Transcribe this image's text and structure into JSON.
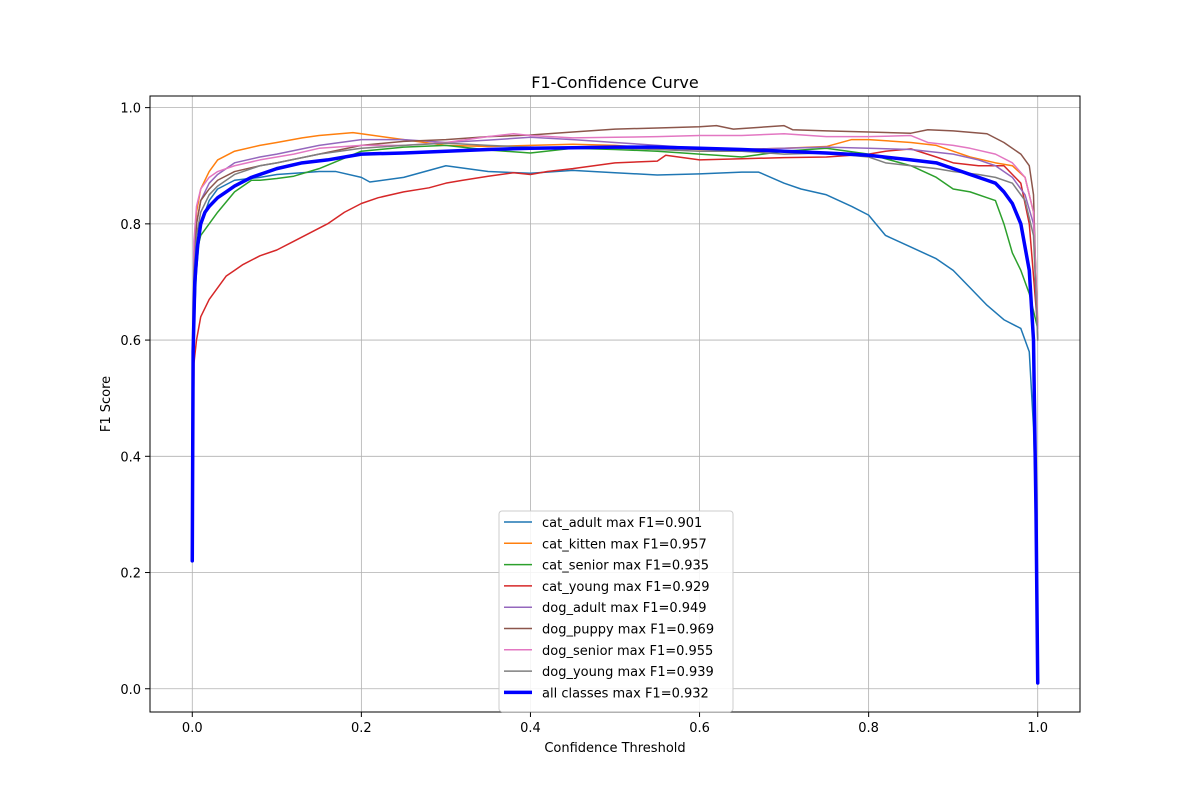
{
  "chart_data": {
    "type": "line",
    "title": "F1-Confidence Curve",
    "xlabel": "Confidence Threshold",
    "ylabel": "F1 Score",
    "xlim": [
      -0.05,
      1.05
    ],
    "ylim": [
      -0.04,
      1.02
    ],
    "xticks": [
      "0.0",
      "0.2",
      "0.4",
      "0.6",
      "0.8",
      "1.0"
    ],
    "yticks": [
      "0.0",
      "0.2",
      "0.4",
      "0.6",
      "0.8",
      "1.0"
    ],
    "grid": true,
    "legend_position": "lower-center",
    "series": [
      {
        "name": "cat_adult max F1=0.901",
        "color": "#1f77b4",
        "linewidth": 1.5,
        "x": [
          0.0,
          0.002,
          0.005,
          0.01,
          0.02,
          0.03,
          0.05,
          0.08,
          0.1,
          0.13,
          0.15,
          0.17,
          0.2,
          0.21,
          0.25,
          0.3,
          0.35,
          0.4,
          0.45,
          0.5,
          0.55,
          0.6,
          0.65,
          0.67,
          0.7,
          0.72,
          0.75,
          0.78,
          0.8,
          0.82,
          0.85,
          0.88,
          0.9,
          0.92,
          0.94,
          0.96,
          0.98,
          0.99,
          0.995,
          0.998,
          1.0
        ],
        "y": [
          0.22,
          0.62,
          0.72,
          0.8,
          0.84,
          0.86,
          0.875,
          0.88,
          0.885,
          0.888,
          0.89,
          0.89,
          0.88,
          0.872,
          0.88,
          0.9,
          0.89,
          0.887,
          0.892,
          0.888,
          0.884,
          0.886,
          0.889,
          0.889,
          0.87,
          0.86,
          0.85,
          0.83,
          0.815,
          0.78,
          0.76,
          0.74,
          0.72,
          0.69,
          0.66,
          0.635,
          0.62,
          0.58,
          0.45,
          0.3,
          0.01
        ]
      },
      {
        "name": "cat_kitten max F1=0.957",
        "color": "#ff7f0e",
        "linewidth": 1.5,
        "x": [
          0.0,
          0.002,
          0.005,
          0.01,
          0.02,
          0.03,
          0.05,
          0.08,
          0.1,
          0.13,
          0.15,
          0.19,
          0.2,
          0.25,
          0.3,
          0.35,
          0.4,
          0.45,
          0.5,
          0.55,
          0.6,
          0.65,
          0.7,
          0.75,
          0.78,
          0.8,
          0.85,
          0.88,
          0.9,
          0.92,
          0.95,
          0.97,
          0.985,
          0.995,
          1.0
        ],
        "y": [
          0.22,
          0.75,
          0.82,
          0.86,
          0.89,
          0.91,
          0.925,
          0.935,
          0.94,
          0.948,
          0.952,
          0.957,
          0.955,
          0.945,
          0.935,
          0.933,
          0.935,
          0.937,
          0.935,
          0.93,
          0.928,
          0.928,
          0.93,
          0.933,
          0.945,
          0.945,
          0.94,
          0.935,
          0.925,
          0.915,
          0.905,
          0.9,
          0.88,
          0.82,
          0.63
        ]
      },
      {
        "name": "cat_senior max F1=0.935",
        "color": "#2ca02c",
        "linewidth": 1.5,
        "x": [
          0.0,
          0.002,
          0.005,
          0.01,
          0.02,
          0.03,
          0.05,
          0.07,
          0.08,
          0.1,
          0.12,
          0.15,
          0.2,
          0.25,
          0.3,
          0.35,
          0.4,
          0.45,
          0.5,
          0.55,
          0.6,
          0.62,
          0.65,
          0.7,
          0.75,
          0.8,
          0.85,
          0.88,
          0.9,
          0.92,
          0.94,
          0.95,
          0.96,
          0.97,
          0.98,
          0.99,
          1.0
        ],
        "y": [
          0.22,
          0.7,
          0.75,
          0.78,
          0.8,
          0.82,
          0.855,
          0.875,
          0.875,
          0.878,
          0.882,
          0.895,
          0.925,
          0.932,
          0.935,
          0.927,
          0.922,
          0.93,
          0.928,
          0.925,
          0.92,
          0.918,
          0.915,
          0.925,
          0.93,
          0.92,
          0.9,
          0.88,
          0.86,
          0.855,
          0.845,
          0.84,
          0.8,
          0.75,
          0.72,
          0.68,
          0.62
        ]
      },
      {
        "name": "cat_young max F1=0.929",
        "color": "#d62728",
        "linewidth": 1.5,
        "x": [
          0.0,
          0.002,
          0.005,
          0.01,
          0.02,
          0.03,
          0.04,
          0.05,
          0.06,
          0.08,
          0.1,
          0.12,
          0.14,
          0.16,
          0.18,
          0.2,
          0.22,
          0.25,
          0.28,
          0.3,
          0.32,
          0.35,
          0.38,
          0.4,
          0.42,
          0.45,
          0.5,
          0.55,
          0.56,
          0.6,
          0.65,
          0.7,
          0.75,
          0.8,
          0.82,
          0.85,
          0.88,
          0.9,
          0.93,
          0.96,
          0.98,
          0.99,
          1.0
        ],
        "y": [
          0.22,
          0.56,
          0.6,
          0.64,
          0.67,
          0.69,
          0.71,
          0.72,
          0.73,
          0.745,
          0.755,
          0.77,
          0.785,
          0.8,
          0.82,
          0.835,
          0.845,
          0.855,
          0.862,
          0.87,
          0.875,
          0.882,
          0.888,
          0.885,
          0.89,
          0.895,
          0.905,
          0.908,
          0.918,
          0.91,
          0.912,
          0.914,
          0.915,
          0.92,
          0.925,
          0.929,
          0.915,
          0.905,
          0.9,
          0.9,
          0.87,
          0.8,
          0.62
        ]
      },
      {
        "name": "dog_adult max F1=0.949",
        "color": "#9467bd",
        "linewidth": 1.5,
        "x": [
          0.0,
          0.002,
          0.005,
          0.01,
          0.02,
          0.03,
          0.05,
          0.08,
          0.1,
          0.15,
          0.2,
          0.25,
          0.3,
          0.35,
          0.4,
          0.45,
          0.5,
          0.55,
          0.6,
          0.65,
          0.7,
          0.75,
          0.8,
          0.85,
          0.9,
          0.93,
          0.95,
          0.97,
          0.985,
          0.995,
          1.0
        ],
        "y": [
          0.22,
          0.75,
          0.8,
          0.84,
          0.87,
          0.885,
          0.905,
          0.915,
          0.92,
          0.935,
          0.945,
          0.945,
          0.94,
          0.944,
          0.949,
          0.945,
          0.94,
          0.935,
          0.93,
          0.928,
          0.93,
          0.932,
          0.93,
          0.928,
          0.92,
          0.91,
          0.9,
          0.88,
          0.85,
          0.8,
          0.62
        ]
      },
      {
        "name": "dog_puppy max F1=0.969",
        "color": "#8c564b",
        "linewidth": 1.5,
        "x": [
          0.0,
          0.002,
          0.005,
          0.01,
          0.02,
          0.03,
          0.05,
          0.08,
          0.1,
          0.15,
          0.2,
          0.25,
          0.3,
          0.35,
          0.4,
          0.45,
          0.5,
          0.55,
          0.6,
          0.62,
          0.64,
          0.7,
          0.71,
          0.75,
          0.8,
          0.85,
          0.87,
          0.9,
          0.94,
          0.96,
          0.98,
          0.99,
          0.995,
          1.0
        ],
        "y": [
          0.22,
          0.72,
          0.8,
          0.84,
          0.86,
          0.875,
          0.89,
          0.9,
          0.905,
          0.92,
          0.935,
          0.942,
          0.945,
          0.95,
          0.953,
          0.958,
          0.963,
          0.965,
          0.967,
          0.969,
          0.963,
          0.969,
          0.962,
          0.96,
          0.958,
          0.956,
          0.962,
          0.96,
          0.955,
          0.94,
          0.92,
          0.9,
          0.85,
          0.6
        ]
      },
      {
        "name": "dog_senior max F1=0.955",
        "color": "#e377c2",
        "linewidth": 1.5,
        "x": [
          0.0,
          0.002,
          0.005,
          0.01,
          0.02,
          0.03,
          0.05,
          0.08,
          0.1,
          0.12,
          0.15,
          0.2,
          0.25,
          0.3,
          0.35,
          0.38,
          0.4,
          0.45,
          0.5,
          0.55,
          0.6,
          0.65,
          0.7,
          0.75,
          0.8,
          0.85,
          0.87,
          0.9,
          0.92,
          0.95,
          0.97,
          0.985,
          0.995,
          1.0
        ],
        "y": [
          0.22,
          0.77,
          0.83,
          0.86,
          0.88,
          0.89,
          0.9,
          0.91,
          0.915,
          0.92,
          0.93,
          0.935,
          0.935,
          0.94,
          0.95,
          0.955,
          0.952,
          0.948,
          0.949,
          0.95,
          0.952,
          0.952,
          0.955,
          0.95,
          0.95,
          0.952,
          0.94,
          0.935,
          0.93,
          0.92,
          0.905,
          0.88,
          0.82,
          0.62
        ]
      },
      {
        "name": "dog_young max F1=0.939",
        "color": "#7f7f7f",
        "linewidth": 1.5,
        "x": [
          0.0,
          0.002,
          0.005,
          0.01,
          0.02,
          0.03,
          0.05,
          0.08,
          0.1,
          0.15,
          0.2,
          0.25,
          0.3,
          0.35,
          0.4,
          0.45,
          0.5,
          0.55,
          0.6,
          0.65,
          0.7,
          0.75,
          0.8,
          0.82,
          0.85,
          0.88,
          0.9,
          0.93,
          0.95,
          0.97,
          0.985,
          0.995,
          1.0
        ],
        "y": [
          0.22,
          0.72,
          0.78,
          0.82,
          0.85,
          0.865,
          0.885,
          0.9,
          0.905,
          0.92,
          0.93,
          0.935,
          0.939,
          0.935,
          0.932,
          0.93,
          0.93,
          0.928,
          0.925,
          0.925,
          0.92,
          0.922,
          0.915,
          0.905,
          0.9,
          0.895,
          0.89,
          0.885,
          0.88,
          0.87,
          0.84,
          0.78,
          0.6
        ]
      },
      {
        "name": "all classes max F1=0.932",
        "color": "#0000ff",
        "linewidth": 3.5,
        "x": [
          0.0,
          0.001,
          0.003,
          0.006,
          0.01,
          0.015,
          0.02,
          0.03,
          0.04,
          0.05,
          0.07,
          0.1,
          0.13,
          0.16,
          0.2,
          0.25,
          0.3,
          0.35,
          0.4,
          0.45,
          0.5,
          0.55,
          0.6,
          0.65,
          0.7,
          0.75,
          0.8,
          0.85,
          0.88,
          0.9,
          0.92,
          0.94,
          0.95,
          0.96,
          0.97,
          0.98,
          0.99,
          0.995,
          0.998,
          1.0
        ],
        "y": [
          0.22,
          0.58,
          0.7,
          0.76,
          0.8,
          0.82,
          0.83,
          0.845,
          0.855,
          0.865,
          0.88,
          0.895,
          0.905,
          0.91,
          0.92,
          0.922,
          0.925,
          0.928,
          0.93,
          0.931,
          0.932,
          0.932,
          0.93,
          0.928,
          0.925,
          0.922,
          0.918,
          0.91,
          0.905,
          0.895,
          0.885,
          0.875,
          0.87,
          0.855,
          0.835,
          0.8,
          0.72,
          0.6,
          0.3,
          0.01
        ]
      }
    ]
  }
}
